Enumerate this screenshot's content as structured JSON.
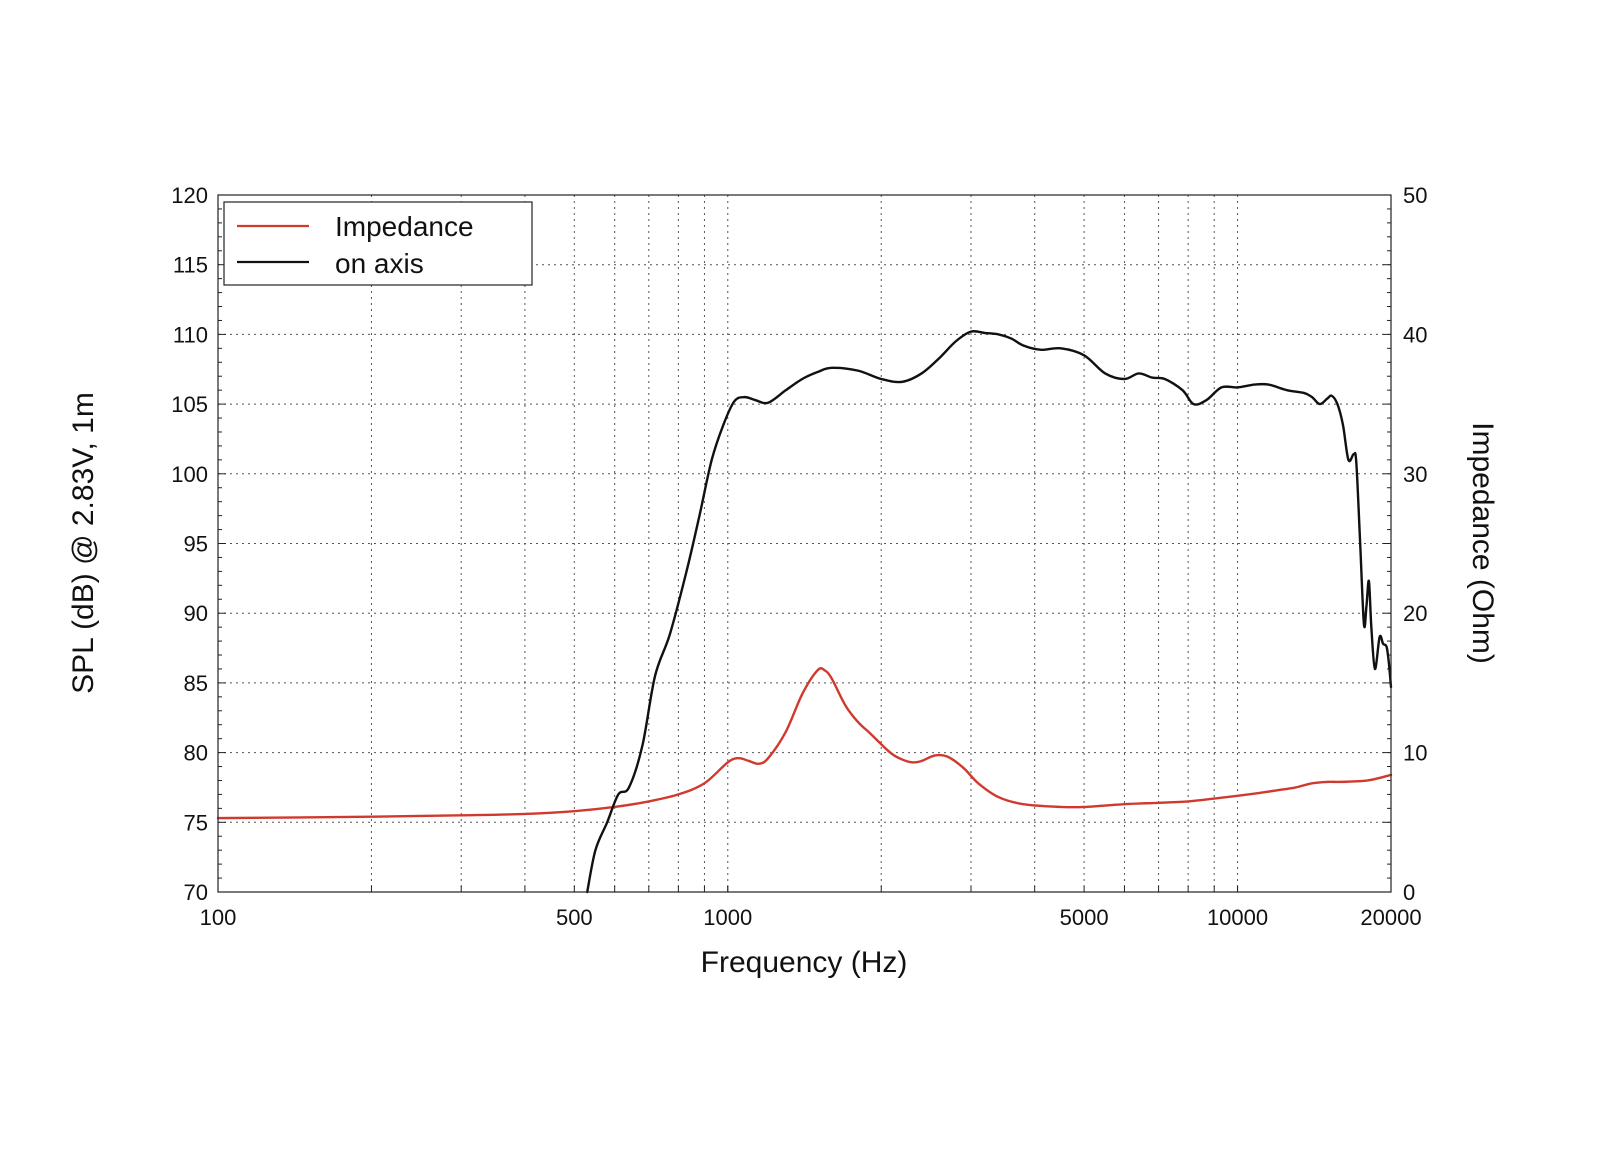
{
  "chart_data": {
    "type": "line",
    "title": "",
    "xlabel": "Frequency (Hz)",
    "ylabel": "SPL (dB) @ 2.83V, 1m",
    "y2label": "Impedance (Ohm)",
    "xscale": "log",
    "xlim": [
      100,
      20000
    ],
    "ylim": [
      70,
      120
    ],
    "y2lim": [
      0,
      50
    ],
    "grid": true,
    "legend_position": "top-left",
    "x_ticks": [
      100,
      500,
      1000,
      5000,
      10000,
      20000
    ],
    "x_tick_labels": [
      "100",
      "500",
      "1000",
      "5000",
      "10000",
      "20000"
    ],
    "y_ticks": [
      70,
      75,
      80,
      85,
      90,
      95,
      100,
      105,
      110,
      115,
      120
    ],
    "y_tick_labels": [
      "70",
      "75",
      "80",
      "85",
      "90",
      "95",
      "100",
      "105",
      "110",
      "115",
      "120"
    ],
    "y2_ticks": [
      0,
      10,
      20,
      30,
      40,
      50
    ],
    "y2_tick_labels": [
      "0",
      "10",
      "20",
      "30",
      "40",
      "50"
    ],
    "series": [
      {
        "name": "Impedance",
        "axis": "right",
        "color": "#d03a2e",
        "points": [
          [
            100,
            5.3
          ],
          [
            200,
            5.4
          ],
          [
            300,
            5.5
          ],
          [
            400,
            5.6
          ],
          [
            500,
            5.8
          ],
          [
            600,
            6.1
          ],
          [
            700,
            6.5
          ],
          [
            800,
            7.0
          ],
          [
            900,
            7.8
          ],
          [
            1000,
            9.3
          ],
          [
            1050,
            9.6
          ],
          [
            1100,
            9.4
          ],
          [
            1150,
            9.2
          ],
          [
            1200,
            9.6
          ],
          [
            1300,
            11.5
          ],
          [
            1400,
            14.2
          ],
          [
            1500,
            15.9
          ],
          [
            1550,
            15.9
          ],
          [
            1600,
            15.3
          ],
          [
            1700,
            13.4
          ],
          [
            1800,
            12.2
          ],
          [
            1900,
            11.4
          ],
          [
            2000,
            10.6
          ],
          [
            2100,
            9.9
          ],
          [
            2200,
            9.5
          ],
          [
            2300,
            9.3
          ],
          [
            2400,
            9.4
          ],
          [
            2550,
            9.8
          ],
          [
            2700,
            9.7
          ],
          [
            2900,
            8.9
          ],
          [
            3100,
            7.8
          ],
          [
            3400,
            6.8
          ],
          [
            3800,
            6.3
          ],
          [
            4500,
            6.1
          ],
          [
            5000,
            6.1
          ],
          [
            6000,
            6.3
          ],
          [
            7000,
            6.4
          ],
          [
            8000,
            6.5
          ],
          [
            9000,
            6.7
          ],
          [
            10000,
            6.9
          ],
          [
            11000,
            7.1
          ],
          [
            12000,
            7.3
          ],
          [
            13000,
            7.5
          ],
          [
            14000,
            7.8
          ],
          [
            15000,
            7.9
          ],
          [
            16000,
            7.9
          ],
          [
            18000,
            8.0
          ],
          [
            20000,
            8.4
          ]
        ]
      },
      {
        "name": "on axis",
        "axis": "left",
        "color": "#111111",
        "points": [
          [
            530,
            70.0
          ],
          [
            550,
            73.0
          ],
          [
            580,
            75.0
          ],
          [
            610,
            77.0
          ],
          [
            640,
            77.5
          ],
          [
            680,
            80.5
          ],
          [
            720,
            85.5
          ],
          [
            770,
            88.5
          ],
          [
            830,
            93.0
          ],
          [
            880,
            97.0
          ],
          [
            930,
            101.0
          ],
          [
            980,
            103.5
          ],
          [
            1030,
            105.2
          ],
          [
            1080,
            105.5
          ],
          [
            1130,
            105.3
          ],
          [
            1200,
            105.1
          ],
          [
            1300,
            106.0
          ],
          [
            1400,
            106.8
          ],
          [
            1500,
            107.3
          ],
          [
            1600,
            107.6
          ],
          [
            1800,
            107.4
          ],
          [
            2000,
            106.8
          ],
          [
            2200,
            106.6
          ],
          [
            2400,
            107.2
          ],
          [
            2600,
            108.3
          ],
          [
            2800,
            109.5
          ],
          [
            3000,
            110.2
          ],
          [
            3200,
            110.1
          ],
          [
            3400,
            110.0
          ],
          [
            3600,
            109.7
          ],
          [
            3800,
            109.2
          ],
          [
            4100,
            108.9
          ],
          [
            4500,
            109.0
          ],
          [
            5000,
            108.5
          ],
          [
            5500,
            107.2
          ],
          [
            6000,
            106.8
          ],
          [
            6400,
            107.2
          ],
          [
            6800,
            106.9
          ],
          [
            7200,
            106.8
          ],
          [
            7800,
            106.0
          ],
          [
            8200,
            105.0
          ],
          [
            8700,
            105.3
          ],
          [
            9300,
            106.2
          ],
          [
            10000,
            106.2
          ],
          [
            10800,
            106.4
          ],
          [
            11500,
            106.4
          ],
          [
            12500,
            106.0
          ],
          [
            13500,
            105.8
          ],
          [
            14000,
            105.5
          ],
          [
            14500,
            105.0
          ],
          [
            15000,
            105.4
          ],
          [
            15300,
            105.6
          ],
          [
            15700,
            105.0
          ],
          [
            16100,
            103.5
          ],
          [
            16500,
            101.0
          ],
          [
            16900,
            101.4
          ],
          [
            17100,
            100.8
          ],
          [
            17400,
            95.0
          ],
          [
            17700,
            89.2
          ],
          [
            17900,
            90.5
          ],
          [
            18100,
            92.3
          ],
          [
            18300,
            89.0
          ],
          [
            18600,
            86.0
          ],
          [
            19000,
            88.3
          ],
          [
            19300,
            87.8
          ],
          [
            19600,
            87.6
          ],
          [
            19800,
            86.5
          ],
          [
            20000,
            84.7
          ]
        ]
      }
    ]
  }
}
